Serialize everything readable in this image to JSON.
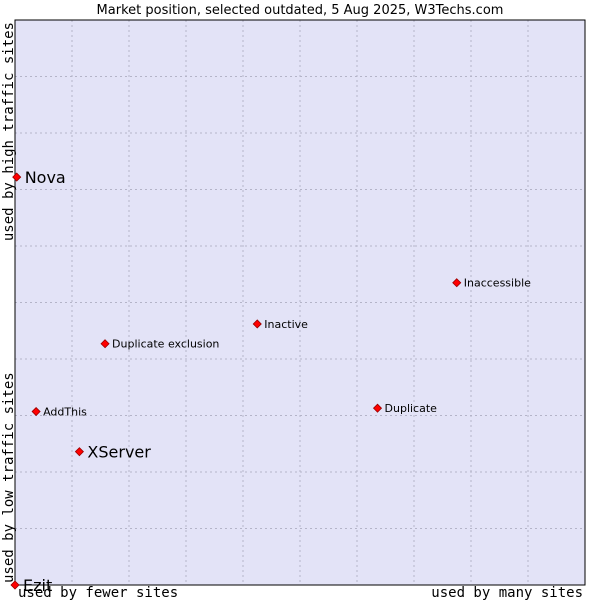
{
  "chart_data": {
    "type": "scatter",
    "title": "Market position, selected outdated, 5 Aug 2025, W3Techs.com",
    "xlabel_left": "used by fewer sites",
    "xlabel_right": "used by many sites",
    "ylabel_bottom": "used by low traffic sites",
    "ylabel_top": "used by high traffic sites",
    "xlim": [
      0,
      100
    ],
    "ylim": [
      0,
      100
    ],
    "grid": true,
    "colors": {
      "plot_bg": "#e3e3f7",
      "grid": "#b4b4c8",
      "marker": "#ff0000",
      "marker_outline": "#990000",
      "border": "#000000"
    },
    "points": [
      {
        "name": "Nova",
        "x": 0.3,
        "y": 72.2,
        "emphasis": true
      },
      {
        "name": "Inaccessible",
        "x": 77.5,
        "y": 53.5,
        "emphasis": false
      },
      {
        "name": "Inactive",
        "x": 42.5,
        "y": 46.2,
        "emphasis": false
      },
      {
        "name": "Duplicate exclusion",
        "x": 15.8,
        "y": 42.7,
        "emphasis": false
      },
      {
        "name": "AddThis",
        "x": 3.7,
        "y": 30.7,
        "emphasis": false
      },
      {
        "name": "Duplicate",
        "x": 63.6,
        "y": 31.3,
        "emphasis": false
      },
      {
        "name": "XServer",
        "x": 11.3,
        "y": 23.6,
        "emphasis": true
      },
      {
        "name": "Ezit",
        "x": 0.0,
        "y": 0.0,
        "emphasis": true
      }
    ]
  }
}
